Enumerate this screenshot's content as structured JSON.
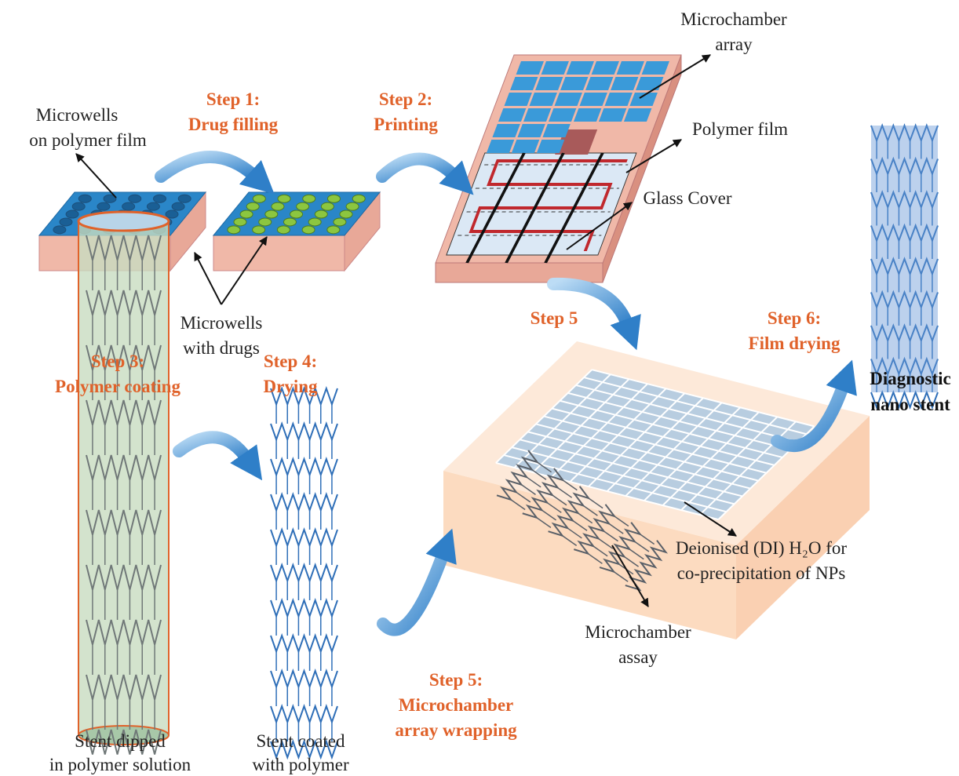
{
  "labels": {
    "microchamber_array": [
      "Microchamber",
      "array"
    ],
    "polymer_film": [
      "Polymer film"
    ],
    "glass_cover": [
      "Glass Cover"
    ],
    "microwells_film": [
      "Microwells",
      "on polymer film"
    ],
    "microwells_drugs": [
      "Microwells",
      "with drugs"
    ],
    "diagnostic": [
      "Diagnostic",
      "nano stent"
    ],
    "stent_dipped": [
      "Stent dipped",
      "in polymer solution"
    ],
    "stent_coated": [
      "Stent coated",
      "with polymer"
    ],
    "deionised": [
      "Deionised (DI) H₂O for",
      "co-precipitation of NPs"
    ],
    "microchamber_assay": [
      "Microchamber",
      "assay"
    ]
  },
  "steps": {
    "step1": [
      "Step 1:",
      "Drug filling"
    ],
    "step2": [
      "Step 2:",
      "Printing"
    ],
    "step3": [
      "Step 3:",
      "Polymer coating"
    ],
    "step4": [
      "Step 4:",
      "Drying"
    ],
    "step5a": [
      "Step 5"
    ],
    "step5b": [
      "Step 5:",
      "Microchamber",
      "array wrapping"
    ],
    "step6": [
      "Step 6:",
      "Film drying"
    ]
  }
}
